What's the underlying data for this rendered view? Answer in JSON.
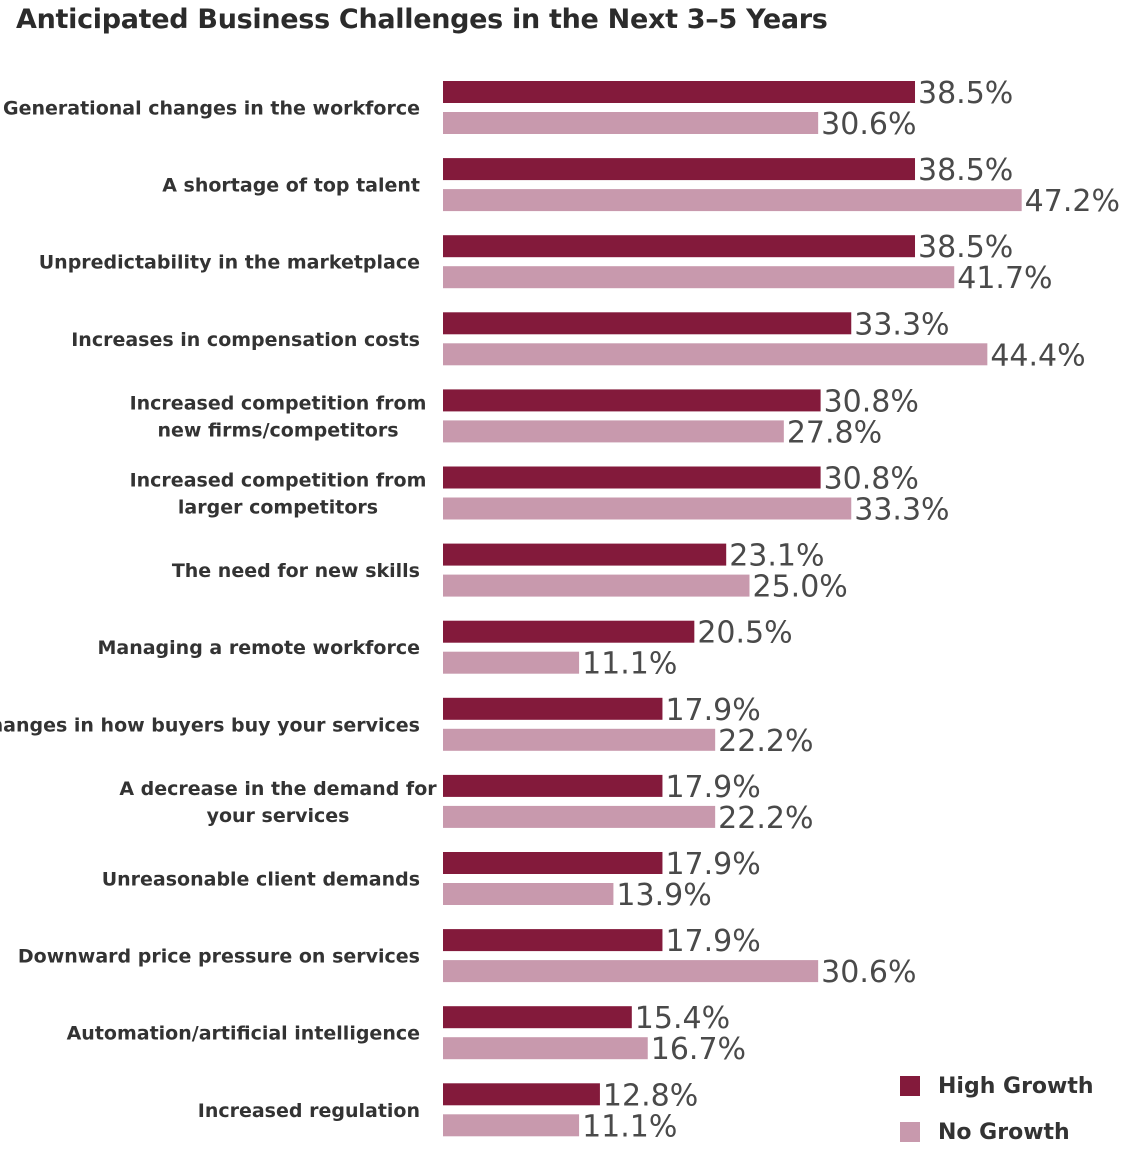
{
  "title": "Anticipated Business Challenges in the Next 3–5 Years",
  "colors": {
    "high_growth": "#831a3b",
    "no_growth": "#c899ad"
  },
  "chart_data": {
    "type": "bar",
    "orientation": "horizontal",
    "xlim": [
      0,
      50
    ],
    "grid": false,
    "legend_position": "bottom-right",
    "value_suffix": "%",
    "categories": [
      [
        "Generational changes in the workforce"
      ],
      [
        "A shortage of top talent"
      ],
      [
        "Unpredictability in the marketplace"
      ],
      [
        "Increases in compensation costs"
      ],
      [
        "Increased competition from",
        "new firms/competitors"
      ],
      [
        "Increased competition from",
        "larger competitors"
      ],
      [
        "The need for new skills"
      ],
      [
        "Managing a remote workforce"
      ],
      [
        "Changes in how buyers buy your services"
      ],
      [
        "A decrease in the demand for",
        "your services"
      ],
      [
        "Unreasonable client demands"
      ],
      [
        "Downward price pressure on services"
      ],
      [
        "Automation/artificial intelligence"
      ],
      [
        "Increased regulation"
      ]
    ],
    "series": [
      {
        "name": "High Growth",
        "color": "#831a3b",
        "values": [
          38.5,
          38.5,
          38.5,
          33.3,
          30.8,
          30.8,
          23.1,
          20.5,
          17.9,
          17.9,
          17.9,
          17.9,
          15.4,
          12.8
        ]
      },
      {
        "name": "No Growth",
        "color": "#c899ad",
        "values": [
          30.6,
          47.2,
          41.7,
          44.4,
          27.8,
          33.3,
          25.0,
          11.1,
          22.2,
          22.2,
          13.9,
          30.6,
          16.7,
          11.1
        ]
      }
    ]
  }
}
